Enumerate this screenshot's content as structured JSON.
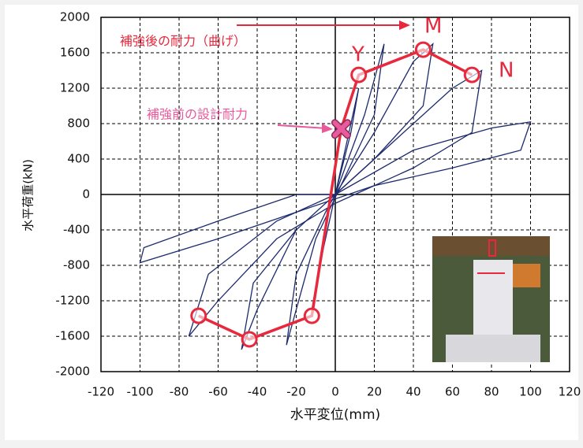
{
  "chart_data": {
    "type": "hysteresis",
    "xlabel": "水平変位(mm)",
    "ylabel": "水平荷重(kN)",
    "xlim": [
      -120,
      120
    ],
    "ylim": [
      -2000,
      2000
    ],
    "xticks": [
      -120,
      -100,
      -80,
      -60,
      -40,
      -20,
      0,
      20,
      40,
      60,
      80,
      100,
      120
    ],
    "yticks": [
      -2000,
      -1600,
      -1200,
      -800,
      -400,
      0,
      400,
      800,
      1200,
      1600,
      2000
    ],
    "grid": true,
    "series": [
      {
        "color": "#1c2a6e",
        "x": [
          0,
          6,
          12,
          8,
          0,
          -6,
          -12,
          -8,
          0
        ],
        "y": [
          0,
          600,
          1200,
          700,
          0,
          -600,
          -1300,
          -800,
          0
        ]
      },
      {
        "color": "#1c2a6e",
        "x": [
          0,
          15,
          25,
          20,
          5,
          -10,
          -25,
          -20,
          -5,
          0
        ],
        "y": [
          0,
          900,
          1700,
          900,
          200,
          -500,
          -1700,
          -900,
          -200,
          0
        ]
      },
      {
        "color": "#1c2a6e",
        "x": [
          0,
          20,
          40,
          50,
          45,
          20,
          0,
          -20,
          -40,
          -48,
          -42,
          -20,
          0
        ],
        "y": [
          0,
          700,
          1500,
          1700,
          1000,
          400,
          0,
          -400,
          -1300,
          -1750,
          -1000,
          -400,
          0
        ]
      },
      {
        "color": "#1c2a6e",
        "x": [
          0,
          30,
          60,
          75,
          70,
          40,
          0,
          -30,
          -60,
          -75,
          -65,
          -30,
          0
        ],
        "y": [
          0,
          600,
          1200,
          1400,
          700,
          300,
          -100,
          -500,
          -1200,
          -1600,
          -900,
          -300,
          0
        ]
      },
      {
        "color": "#1c2a6e",
        "x": [
          0,
          40,
          80,
          100,
          95,
          60,
          20,
          -20,
          -60,
          -100,
          -98,
          -60,
          -20,
          0
        ],
        "y": [
          0,
          500,
          750,
          820,
          500,
          300,
          100,
          -200,
          -500,
          -770,
          -600,
          -300,
          0,
          0
        ]
      }
    ],
    "skeleton": {
      "color": "#e8283c",
      "marker_color": "#e85a9c",
      "x": [
        -70,
        -44,
        -12,
        3,
        12,
        45,
        70
      ],
      "y": [
        -1370,
        -1635,
        -1370,
        740,
        1350,
        1635,
        1350
      ]
    },
    "annotations": [
      "補強後の耐力（曲げ）",
      "補強前の設計耐力",
      "Y",
      "M",
      "N"
    ]
  }
}
